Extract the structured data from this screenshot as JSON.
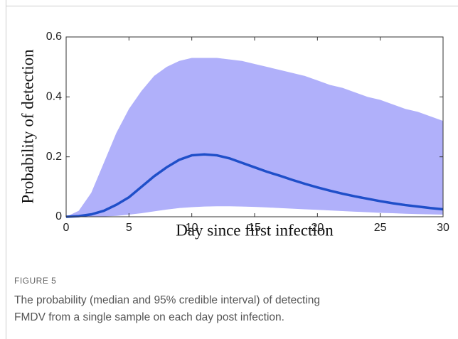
{
  "chart_data": {
    "type": "line",
    "x_label": "Day since first infection",
    "y_label": "Probability of detection",
    "figure_label": "FIGURE 5",
    "caption": [
      "The probability (median and 95% credible interval) of detecting",
      "FMDV from a single sample on each day post infection."
    ],
    "x": [
      0,
      1,
      2,
      3,
      4,
      5,
      6,
      7,
      8,
      9,
      10,
      11,
      12,
      13,
      14,
      15,
      16,
      17,
      18,
      19,
      20,
      21,
      22,
      23,
      24,
      25,
      26,
      27,
      28,
      29,
      30
    ],
    "median": {
      "color": "#1f4fc9",
      "values": [
        0,
        0.002,
        0.008,
        0.02,
        0.04,
        0.065,
        0.1,
        0.135,
        0.165,
        0.19,
        0.205,
        0.208,
        0.205,
        0.195,
        0.18,
        0.165,
        0.15,
        0.137,
        0.123,
        0.11,
        0.098,
        0.087,
        0.077,
        0.068,
        0.06,
        0.052,
        0.045,
        0.039,
        0.034,
        0.029,
        0.025
      ]
    },
    "interval": {
      "color": "#b0b0fa",
      "upper": [
        0,
        0.02,
        0.08,
        0.18,
        0.28,
        0.36,
        0.42,
        0.47,
        0.5,
        0.52,
        0.53,
        0.53,
        0.53,
        0.525,
        0.52,
        0.51,
        0.5,
        0.49,
        0.48,
        0.47,
        0.455,
        0.44,
        0.43,
        0.415,
        0.4,
        0.39,
        0.375,
        0.36,
        0.35,
        0.335,
        0.32
      ],
      "lower": [
        0,
        0,
        0,
        0.001,
        0.003,
        0.007,
        0.012,
        0.018,
        0.024,
        0.029,
        0.032,
        0.034,
        0.035,
        0.035,
        0.034,
        0.033,
        0.031,
        0.029,
        0.027,
        0.025,
        0.023,
        0.021,
        0.019,
        0.017,
        0.015,
        0.013,
        0.012,
        0.01,
        0.009,
        0.008,
        0.007
      ]
    },
    "xlim": [
      0,
      30
    ],
    "xticks": [
      0,
      5,
      10,
      15,
      20,
      25,
      30
    ],
    "ylim": [
      0,
      0.6
    ],
    "yticks": [
      0,
      0.2,
      0.4,
      0.6
    ]
  }
}
